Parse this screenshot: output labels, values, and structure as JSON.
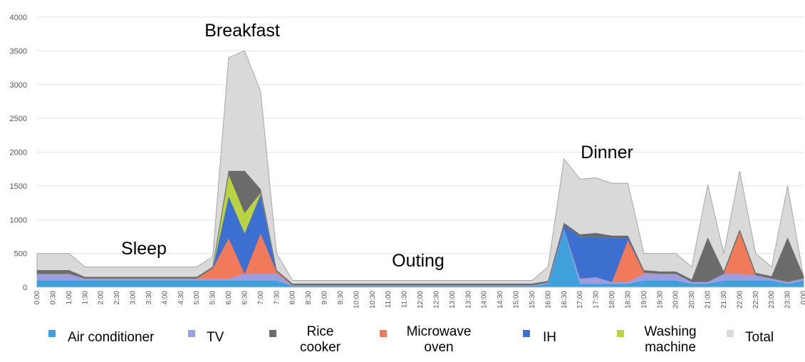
{
  "chart_data": {
    "type": "stacked_area",
    "categories": [
      "0:00",
      "0:30",
      "1:00",
      "1:30",
      "2:00",
      "2:30",
      "3:00",
      "3:30",
      "4:00",
      "4:30",
      "5:00",
      "5:30",
      "6:00",
      "6:30",
      "7:00",
      "7:30",
      "8:00",
      "8:30",
      "9:00",
      "9:30",
      "10:00",
      "10:30",
      "11:00",
      "11:30",
      "12:00",
      "12:30",
      "13:00",
      "13:30",
      "14:00",
      "14:30",
      "15:00",
      "15:30",
      "16:00",
      "16:30",
      "17:00",
      "17:30",
      "18:00",
      "18:30",
      "19:00",
      "19:30",
      "20:00",
      "20:30",
      "21:00",
      "21:30",
      "22:00",
      "22:30",
      "23:00",
      "23:30",
      "0:00"
    ],
    "series": [
      {
        "name": "Air conditioner",
        "color": "#3fa0dc",
        "values": [
          100,
          100,
          100,
          100,
          100,
          100,
          100,
          100,
          100,
          100,
          100,
          100,
          100,
          100,
          100,
          100,
          20,
          20,
          20,
          20,
          20,
          20,
          20,
          20,
          20,
          20,
          20,
          20,
          20,
          20,
          20,
          20,
          50,
          850,
          50,
          50,
          50,
          50,
          100,
          100,
          100,
          50,
          50,
          100,
          100,
          100,
          100,
          50,
          100
        ]
      },
      {
        "name": "TV",
        "color": "#9d9ee0",
        "values": [
          100,
          100,
          100,
          30,
          30,
          30,
          30,
          30,
          30,
          30,
          30,
          30,
          30,
          100,
          100,
          100,
          10,
          10,
          10,
          10,
          10,
          10,
          10,
          10,
          10,
          10,
          10,
          10,
          10,
          10,
          10,
          10,
          20,
          20,
          80,
          100,
          30,
          30,
          100,
          100,
          100,
          30,
          30,
          100,
          100,
          80,
          30,
          30,
          30
        ]
      },
      {
        "name": "Rice cooker",
        "color": "#6b6b6b",
        "values": [
          50,
          50,
          50,
          20,
          20,
          20,
          20,
          20,
          20,
          20,
          20,
          20,
          50,
          620,
          50,
          20,
          20,
          20,
          20,
          20,
          20,
          20,
          20,
          20,
          20,
          20,
          20,
          20,
          20,
          20,
          20,
          20,
          20,
          30,
          30,
          50,
          30,
          30,
          30,
          30,
          30,
          30,
          650,
          30,
          30,
          30,
          30,
          650,
          30
        ]
      },
      {
        "name": "Microwave oven",
        "color": "#f07a5a",
        "values": [
          0,
          0,
          0,
          0,
          0,
          0,
          0,
          0,
          0,
          0,
          0,
          150,
          600,
          0,
          600,
          30,
          0,
          0,
          0,
          0,
          0,
          0,
          0,
          0,
          0,
          0,
          0,
          0,
          0,
          0,
          0,
          0,
          0,
          0,
          0,
          0,
          0,
          620,
          20,
          0,
          0,
          0,
          0,
          0,
          620,
          0,
          0,
          0,
          0
        ]
      },
      {
        "name": "IH",
        "color": "#3c6fcf",
        "values": [
          0,
          0,
          0,
          0,
          0,
          0,
          0,
          0,
          0,
          0,
          0,
          0,
          620,
          600,
          580,
          0,
          0,
          0,
          0,
          0,
          0,
          0,
          0,
          0,
          0,
          0,
          0,
          0,
          0,
          0,
          0,
          0,
          0,
          50,
          620,
          600,
          650,
          30,
          0,
          0,
          0,
          0,
          0,
          0,
          0,
          0,
          0,
          0,
          0
        ]
      },
      {
        "name": "Washing machine",
        "color": "#b9d341",
        "values": [
          0,
          0,
          0,
          0,
          0,
          0,
          0,
          0,
          0,
          0,
          0,
          0,
          320,
          300,
          20,
          0,
          0,
          0,
          0,
          0,
          0,
          0,
          0,
          0,
          0,
          0,
          0,
          0,
          0,
          0,
          0,
          0,
          0,
          0,
          0,
          0,
          0,
          0,
          0,
          0,
          0,
          0,
          0,
          0,
          0,
          0,
          0,
          0,
          0
        ]
      },
      {
        "name": "Total",
        "color": "#d9d9d9",
        "values": [
          500,
          500,
          500,
          300,
          300,
          300,
          300,
          300,
          300,
          300,
          300,
          450,
          3400,
          3500,
          2900,
          500,
          100,
          100,
          100,
          100,
          100,
          100,
          100,
          100,
          100,
          100,
          100,
          100,
          100,
          100,
          100,
          100,
          300,
          1900,
          1600,
          1620,
          1540,
          1540,
          500,
          500,
          500,
          300,
          1520,
          500,
          1720,
          500,
          300,
          1500,
          150
        ]
      }
    ],
    "annotations": [
      "Breakfast",
      "Sleep",
      "Outing",
      "Dinner"
    ],
    "ylim": [
      0,
      4000
    ],
    "yticks": [
      0,
      500,
      1000,
      1500,
      2000,
      2500,
      3000,
      3500,
      4000
    ],
    "grid": true
  }
}
